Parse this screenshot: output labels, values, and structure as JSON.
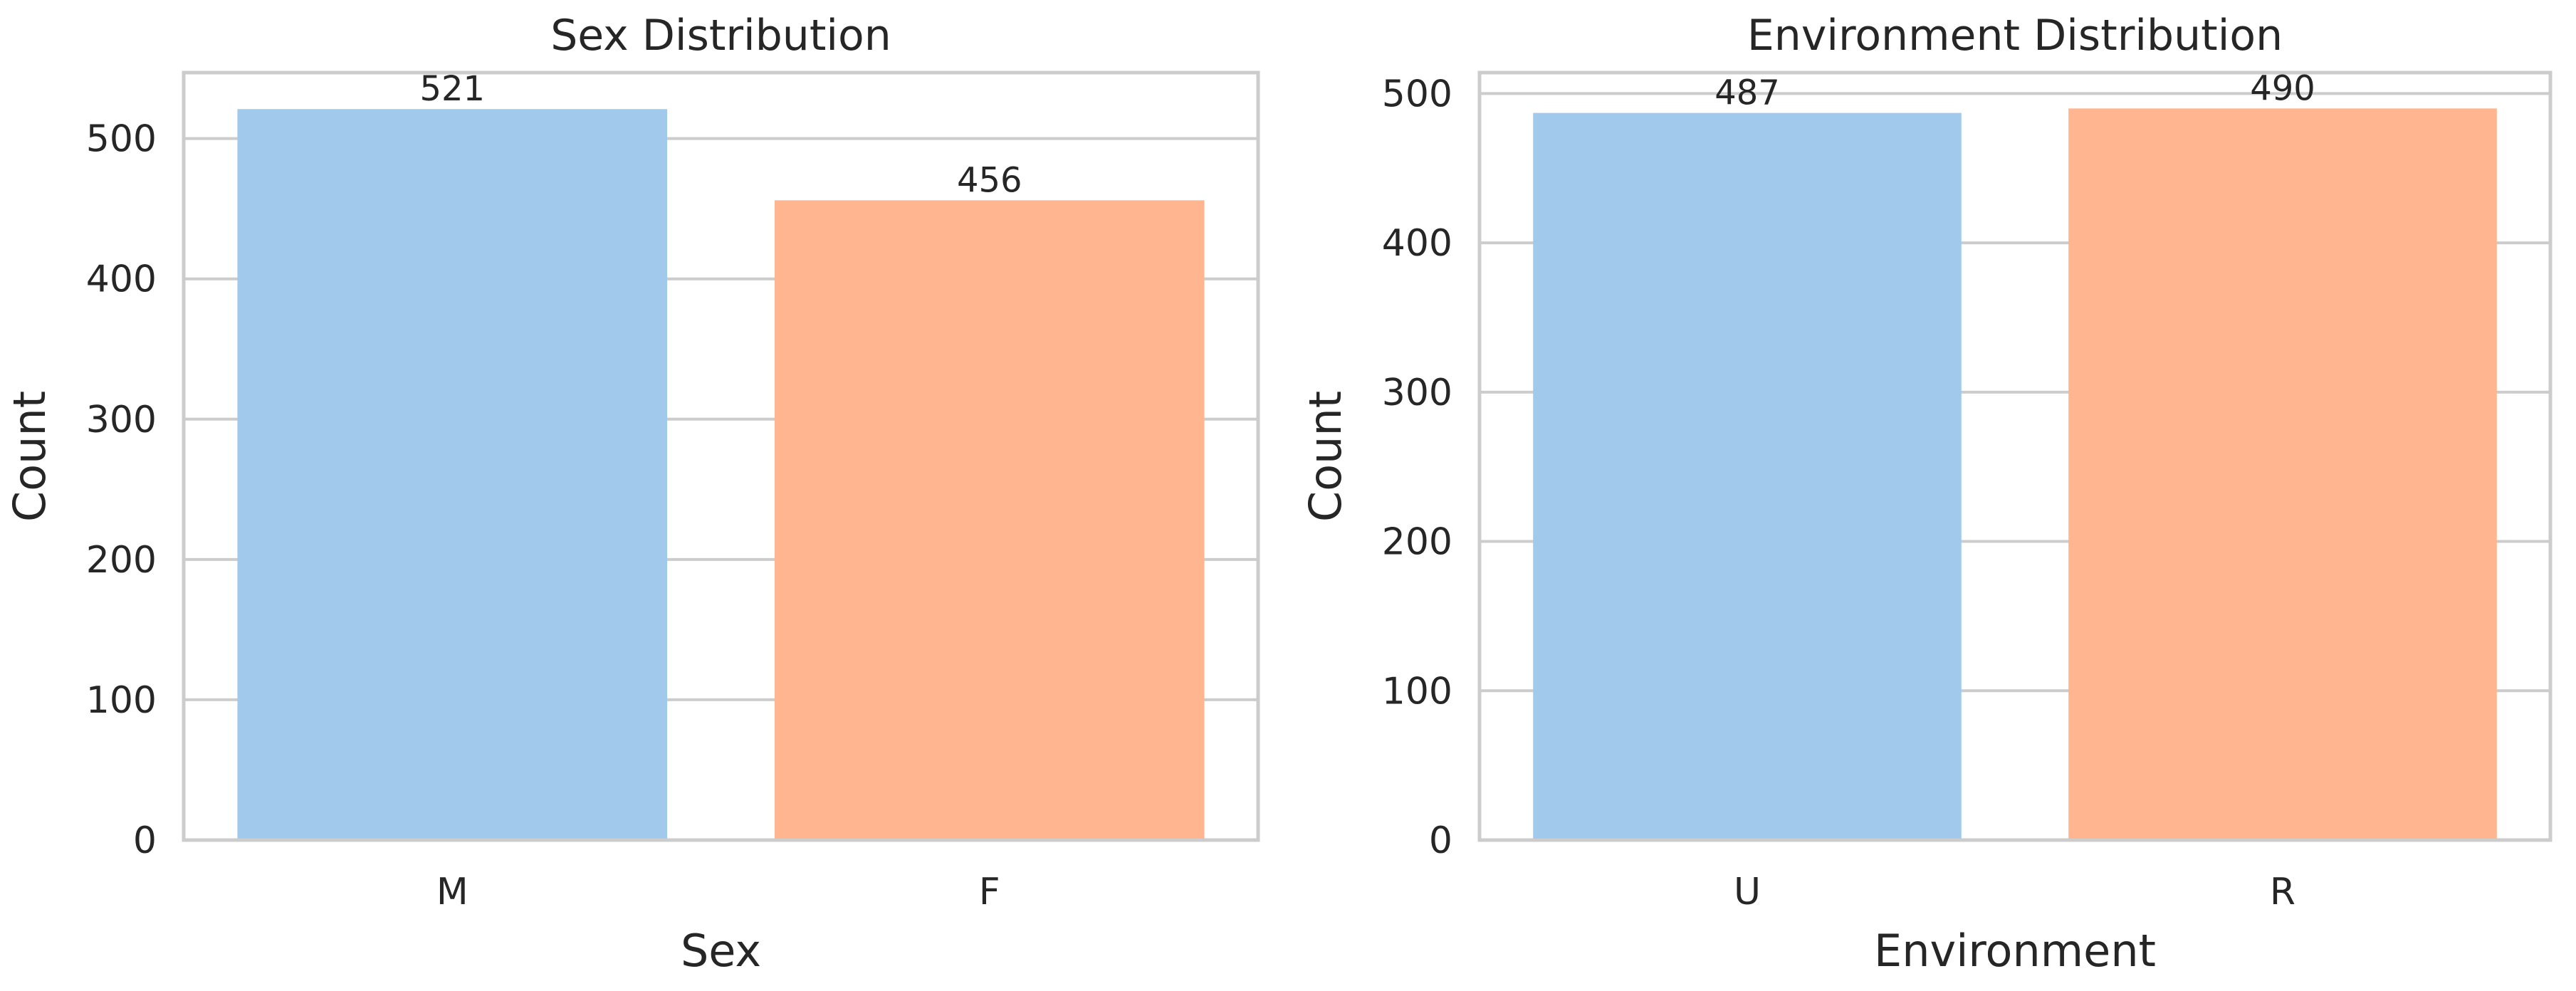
{
  "chart_data": [
    {
      "type": "bar",
      "title": "Sex Distribution",
      "xlabel": "Sex",
      "ylabel": "Count",
      "categories": [
        "M",
        "F"
      ],
      "values": [
        521,
        456
      ],
      "data_labels": [
        "521",
        "456"
      ],
      "colors": [
        "#a1c9ec",
        "#ffb590"
      ],
      "ylim": [
        0,
        547
      ],
      "yticks": [
        0,
        100,
        200,
        300,
        400,
        500
      ],
      "grid": "y",
      "legend": "none"
    },
    {
      "type": "bar",
      "title": "Environment Distribution",
      "xlabel": "Environment",
      "ylabel": "Count",
      "categories": [
        "U",
        "R"
      ],
      "values": [
        487,
        490
      ],
      "data_labels": [
        "487",
        "490"
      ],
      "colors": [
        "#a1c9ec",
        "#ffb590"
      ],
      "ylim": [
        0,
        514
      ],
      "yticks": [
        0,
        100,
        200,
        300,
        400,
        500
      ],
      "grid": "y",
      "legend": "none"
    }
  ]
}
